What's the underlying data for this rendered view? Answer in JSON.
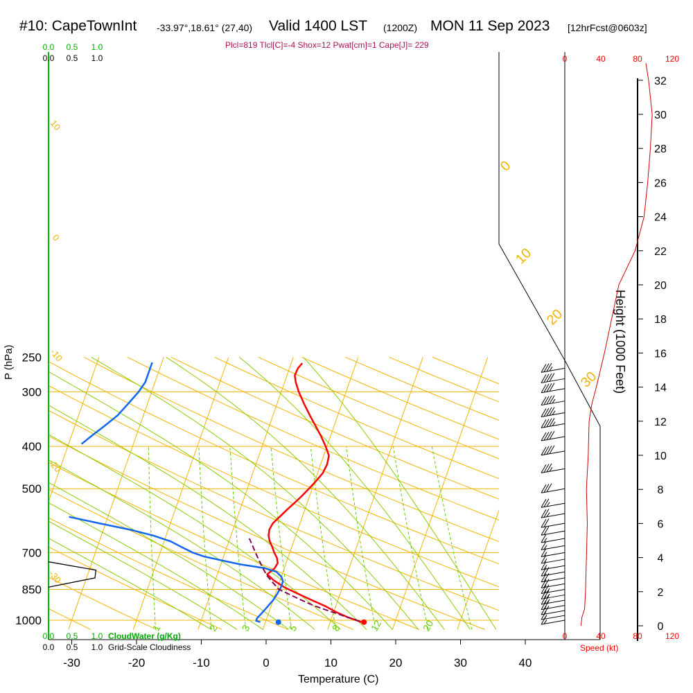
{
  "header": {
    "station": "#10: CapeTownInt",
    "coords": "-33.97°,18.61° (27,40)",
    "valid": "Valid 1400 LST",
    "utc": "(1200Z)",
    "date": "MON 11 Sep 2023",
    "forecast": "[12hrFcst@0603z]",
    "params": "Plcl=819 Tlcl[C]=-4 Shox=12 Pwat[cm]=1 Cape[J]= 229"
  },
  "colors": {
    "isotherm": "#f0b400",
    "dry_adiabat": "#f0b400",
    "moist_adiabat": "#88cc00",
    "mixing_ratio": "#66cc00",
    "temperature": "#ff0000",
    "dewpoint": "#1166ee",
    "parcel": "#880055",
    "wind_speed": "#cc0000",
    "cloud_scale": "#00aa00",
    "params": "#aa1155"
  },
  "chart_data": {
    "type": "line",
    "title": "#10: CapeTownInt -33.97°,18.61° (27,40)  Valid 1400 LST (1200Z) MON 11 Sep 2023 [12hrFcst@0603z]",
    "xlabel": "Temperature (C)",
    "ylabel": "P (hPa)",
    "right_label": "Height (1000 Feet)",
    "x_ticks": [
      "-30",
      "-20",
      "-10",
      "0",
      "10",
      "20",
      "30",
      "40"
    ],
    "p_ticks": [
      "250",
      "300",
      "400",
      "500",
      "700",
      "850",
      "1000"
    ],
    "height_ticks": [
      "0",
      "2",
      "4",
      "6",
      "8",
      "10",
      "12",
      "14",
      "16",
      "18",
      "20",
      "22",
      "24",
      "26",
      "28",
      "30",
      "32"
    ],
    "xlim": [
      -35,
      45
    ],
    "plim": [
      250,
      1050
    ],
    "isotherm_labels": [
      "0",
      "10",
      "20",
      "30"
    ],
    "dry_adiabat_labels": [
      "10",
      "0",
      "-10",
      "-20",
      "-30"
    ],
    "mixing_ratio_labels": [
      "1",
      "2",
      "3",
      "5",
      "8",
      "12",
      "20"
    ],
    "cloud_water": {
      "label": "CloudWater (g/Kg)",
      "ticks": [
        "0.0",
        "0.5",
        "1.0"
      ]
    },
    "cloudiness": {
      "label": "Grid-Scale Cloudiness",
      "ticks": [
        "0.0",
        "0.5",
        "1.0"
      ]
    },
    "speed_axis": {
      "label": "Speed (kt)",
      "ticks": [
        "0",
        "40",
        "80",
        "120"
      ]
    },
    "series": [
      {
        "key": "temperature",
        "points": [
          [
            14.8,
            1010
          ],
          [
            14.2,
            1003
          ],
          [
            12.5,
            985
          ],
          [
            10.5,
            960
          ],
          [
            8.5,
            930
          ],
          [
            6,
            900
          ],
          [
            3.5,
            870
          ],
          [
            1,
            840
          ],
          [
            -1,
            810
          ],
          [
            -2.3,
            785
          ],
          [
            -1.5,
            760
          ],
          [
            -1.3,
            740
          ],
          [
            -1.7,
            720
          ],
          [
            -2.4,
            700
          ],
          [
            -3,
            680
          ],
          [
            -3.7,
            660
          ],
          [
            -4.2,
            640
          ],
          [
            -4.4,
            620
          ],
          [
            -4.2,
            600
          ],
          [
            -3.5,
            580
          ],
          [
            -2.8,
            560
          ],
          [
            -2,
            540
          ],
          [
            -1.2,
            520
          ],
          [
            -0.5,
            500
          ],
          [
            0.2,
            480
          ],
          [
            0.8,
            460
          ],
          [
            1,
            440
          ],
          [
            0.8,
            420
          ],
          [
            -0.2,
            400
          ],
          [
            -1.4,
            380
          ],
          [
            -2.8,
            360
          ],
          [
            -4.3,
            340
          ],
          [
            -5.8,
            320
          ],
          [
            -7.3,
            300
          ],
          [
            -8.3,
            285
          ],
          [
            -8.8,
            275
          ],
          [
            -8.7,
            265
          ],
          [
            -8.3,
            258
          ]
        ]
      },
      {
        "key": "dewpoint",
        "points": [
          [
            -0.8,
            1010
          ],
          [
            -1.5,
            1003
          ],
          [
            -1.5,
            990
          ],
          [
            -1,
            960
          ],
          [
            -0.5,
            930
          ],
          [
            0,
            900
          ],
          [
            0.3,
            870
          ],
          [
            0.5,
            840
          ],
          [
            0.5,
            815
          ],
          [
            0,
            795
          ],
          [
            -1,
            775
          ],
          [
            -3,
            760
          ],
          [
            -7,
            745
          ],
          [
            -10,
            730
          ],
          [
            -13,
            715
          ],
          [
            -15,
            700
          ],
          [
            -17,
            680
          ],
          [
            -19,
            660
          ],
          [
            -22,
            640
          ],
          [
            -26,
            620
          ],
          [
            -31,
            600
          ],
          [
            -36,
            580
          ]
        ]
      },
      {
        "key": "dewpoint_upper",
        "points": [
          [
            -38,
            395
          ],
          [
            -37,
            380
          ],
          [
            -35.5,
            360
          ],
          [
            -34,
            340
          ],
          [
            -33,
            320
          ],
          [
            -32,
            300
          ],
          [
            -31.5,
            285
          ],
          [
            -31.5,
            270
          ],
          [
            -31.5,
            257
          ]
        ]
      },
      {
        "key": "parcel",
        "points": [
          [
            14.5,
            1005
          ],
          [
            12.5,
            985
          ],
          [
            9.5,
            955
          ],
          [
            6.5,
            925
          ],
          [
            4,
            895
          ],
          [
            2,
            870
          ],
          [
            0.3,
            850
          ],
          [
            -1,
            820
          ],
          [
            -2.3,
            790
          ],
          [
            -3.3,
            760
          ],
          [
            -4.3,
            730
          ],
          [
            -5.3,
            700
          ],
          [
            -6.3,
            670
          ],
          [
            -7,
            650
          ]
        ]
      }
    ],
    "surface_points": [
      {
        "key": "temperature",
        "t": 15.2,
        "p": 1010
      },
      {
        "key": "dewpoint",
        "t": 2,
        "p": 1010
      }
    ],
    "cloud_fraction": {
      "p": [
        735,
        768,
        800,
        840
      ],
      "value": [
        0,
        0.95,
        0.93,
        0
      ]
    },
    "wind_speed": {
      "heights_kft": [
        0,
        0.5,
        1,
        2,
        4,
        6,
        8,
        10,
        12,
        13,
        14,
        16,
        20,
        22,
        24,
        26,
        28,
        30,
        32,
        33
      ],
      "values": [
        18,
        19,
        22,
        23,
        24,
        25,
        24,
        26,
        27,
        30,
        35,
        44,
        60,
        78,
        88,
        92,
        95,
        97,
        93,
        90
      ]
    },
    "wind_barbs": [
      {
        "p": 1000,
        "flags": 0,
        "full": 1,
        "half": 1
      },
      {
        "p": 975,
        "flags": 0,
        "full": 1,
        "half": 1
      },
      {
        "p": 950,
        "flags": 0,
        "full": 2,
        "half": 0
      },
      {
        "p": 925,
        "flags": 0,
        "full": 2,
        "half": 0
      },
      {
        "p": 900,
        "flags": 0,
        "full": 2,
        "half": 1
      },
      {
        "p": 875,
        "flags": 0,
        "full": 2,
        "half": 1
      },
      {
        "p": 850,
        "flags": 0,
        "full": 2,
        "half": 1
      },
      {
        "p": 825,
        "flags": 0,
        "full": 2,
        "half": 0
      },
      {
        "p": 800,
        "flags": 0,
        "full": 2,
        "half": 0
      },
      {
        "p": 775,
        "flags": 0,
        "full": 2,
        "half": 0
      },
      {
        "p": 750,
        "flags": 0,
        "full": 1,
        "half": 1
      },
      {
        "p": 725,
        "flags": 0,
        "full": 1,
        "half": 1
      },
      {
        "p": 700,
        "flags": 0,
        "full": 1,
        "half": 1
      },
      {
        "p": 675,
        "flags": 0,
        "full": 1,
        "half": 1
      },
      {
        "p": 650,
        "flags": 0,
        "full": 1,
        "half": 1
      },
      {
        "p": 625,
        "flags": 0,
        "full": 2,
        "half": 0
      },
      {
        "p": 600,
        "flags": 0,
        "full": 2,
        "half": 0
      },
      {
        "p": 570,
        "flags": 0,
        "full": 2,
        "half": 1
      },
      {
        "p": 540,
        "flags": 0,
        "full": 2,
        "half": 1
      },
      {
        "p": 500,
        "flags": 0,
        "full": 3,
        "half": 0
      },
      {
        "p": 450,
        "flags": 0,
        "full": 3,
        "half": 1
      },
      {
        "p": 410,
        "flags": 0,
        "full": 4,
        "half": 0
      },
      {
        "p": 380,
        "flags": 0,
        "full": 4,
        "half": 0
      },
      {
        "p": 355,
        "flags": 0,
        "full": 4,
        "half": 1
      },
      {
        "p": 335,
        "flags": 0,
        "full": 4,
        "half": 1
      },
      {
        "p": 315,
        "flags": 0,
        "full": 4,
        "half": 1
      },
      {
        "p": 295,
        "flags": 0,
        "full": 4,
        "half": 0
      },
      {
        "p": 280,
        "flags": 0,
        "full": 4,
        "half": 0
      },
      {
        "p": 265,
        "flags": 0,
        "full": 3,
        "half": 1
      }
    ]
  }
}
